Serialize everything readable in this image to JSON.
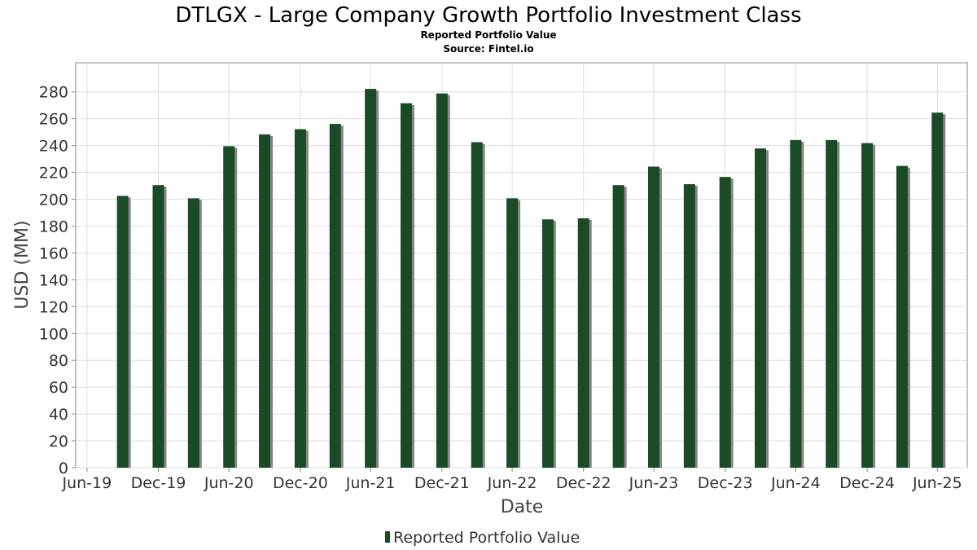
{
  "chart_data": {
    "type": "bar",
    "title": "DTLGX - Large Company Growth Portfolio Investment Class",
    "subtitle": "Reported Portfolio Value",
    "source": "Source: Fintel.io",
    "xlabel": "Date",
    "ylabel": "USD (MM)",
    "ylim": [
      0,
      295
    ],
    "yticks": [
      0,
      20,
      40,
      60,
      80,
      100,
      120,
      140,
      160,
      180,
      200,
      220,
      240,
      260,
      280
    ],
    "xlim": [
      "2019-06-01",
      "2025-09-15"
    ],
    "xticks": [
      {
        "label": "Jun-19",
        "date": "2019-06-30"
      },
      {
        "label": "Dec-19",
        "date": "2019-12-31"
      },
      {
        "label": "Jun-20",
        "date": "2020-06-30"
      },
      {
        "label": "Dec-20",
        "date": "2020-12-31"
      },
      {
        "label": "Jun-21",
        "date": "2021-06-30"
      },
      {
        "label": "Dec-21",
        "date": "2021-12-31"
      },
      {
        "label": "Jun-22",
        "date": "2022-06-30"
      },
      {
        "label": "Dec-22",
        "date": "2022-12-31"
      },
      {
        "label": "Jun-23",
        "date": "2023-06-30"
      },
      {
        "label": "Dec-23",
        "date": "2023-12-31"
      },
      {
        "label": "Jun-24",
        "date": "2024-06-30"
      },
      {
        "label": "Dec-24",
        "date": "2024-12-31"
      },
      {
        "label": "Jun-25",
        "date": "2025-06-30"
      }
    ],
    "grid": true,
    "legend_position": "bottom",
    "series": [
      {
        "name": "Reported Portfolio Value",
        "color": "#1a4a26",
        "shadow_color": "#888888",
        "points": [
          {
            "x": "2019-09-30",
            "y": 202.5
          },
          {
            "x": "2019-12-31",
            "y": 210.5
          },
          {
            "x": "2020-03-31",
            "y": 200.7
          },
          {
            "x": "2020-06-30",
            "y": 239.5
          },
          {
            "x": "2020-09-30",
            "y": 248.3
          },
          {
            "x": "2020-12-31",
            "y": 252.2
          },
          {
            "x": "2021-03-31",
            "y": 256.1
          },
          {
            "x": "2021-06-30",
            "y": 282.2
          },
          {
            "x": "2021-09-30",
            "y": 271.5
          },
          {
            "x": "2021-12-31",
            "y": 278.8
          },
          {
            "x": "2022-03-31",
            "y": 242.5
          },
          {
            "x": "2022-06-30",
            "y": 200.7
          },
          {
            "x": "2022-09-30",
            "y": 185.0
          },
          {
            "x": "2022-12-31",
            "y": 185.8
          },
          {
            "x": "2023-03-31",
            "y": 210.5
          },
          {
            "x": "2023-06-30",
            "y": 224.3
          },
          {
            "x": "2023-09-30",
            "y": 211.2
          },
          {
            "x": "2023-12-31",
            "y": 216.6
          },
          {
            "x": "2024-03-31",
            "y": 237.8
          },
          {
            "x": "2024-06-30",
            "y": 244.1
          },
          {
            "x": "2024-09-30",
            "y": 244.1
          },
          {
            "x": "2024-12-31",
            "y": 241.8
          },
          {
            "x": "2025-03-31",
            "y": 224.8
          },
          {
            "x": "2025-06-30",
            "y": 264.5
          }
        ]
      }
    ]
  }
}
